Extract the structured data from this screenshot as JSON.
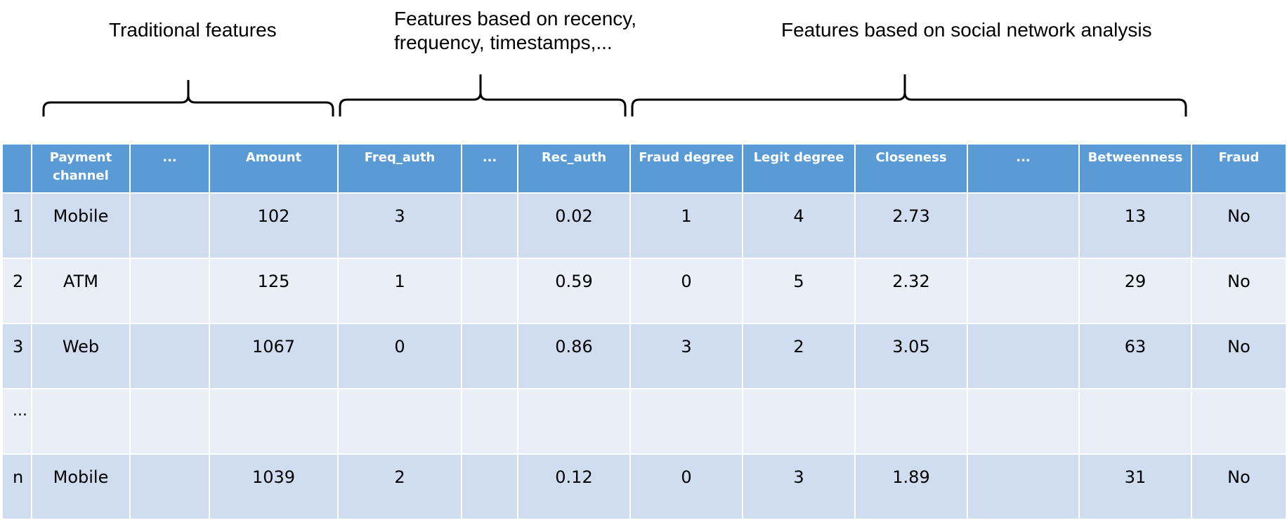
{
  "groups": [
    {
      "label": "Traditional features"
    },
    {
      "label": "Features based on recency,\nfrequency, timestamps,..."
    },
    {
      "label": "Features based on social network analysis"
    }
  ],
  "table": {
    "headers": [
      "",
      "Payment channel",
      "...",
      "Amount",
      "Freq_auth",
      "...",
      "Rec_auth",
      "Fraud degree",
      "Legit degree",
      "Closeness",
      "...",
      "Betweenness",
      "Fraud"
    ],
    "rows": [
      [
        "1",
        "Mobile",
        "",
        "102",
        "3",
        "",
        "0.02",
        "1",
        "4",
        "2.73",
        "",
        "13",
        "No"
      ],
      [
        "2",
        "ATM",
        "",
        "125",
        "1",
        "",
        "0.59",
        "0",
        "5",
        "2.32",
        "",
        "29",
        "No"
      ],
      [
        "3",
        "Web",
        "",
        "1067",
        "0",
        "",
        "0.86",
        "3",
        "2",
        "3.05",
        "",
        "63",
        "No"
      ],
      [
        "...",
        "",
        "",
        "",
        "",
        "",
        "",
        "",
        "",
        "",
        "",
        "",
        ""
      ],
      [
        "n",
        "Mobile",
        "",
        "1039",
        "2",
        "",
        "0.12",
        "0",
        "3",
        "1.89",
        "",
        "31",
        "No"
      ]
    ]
  },
  "colors": {
    "header": "#5b9bd5",
    "row_dark": "#d0dcef",
    "row_light": "#e9eef7"
  }
}
